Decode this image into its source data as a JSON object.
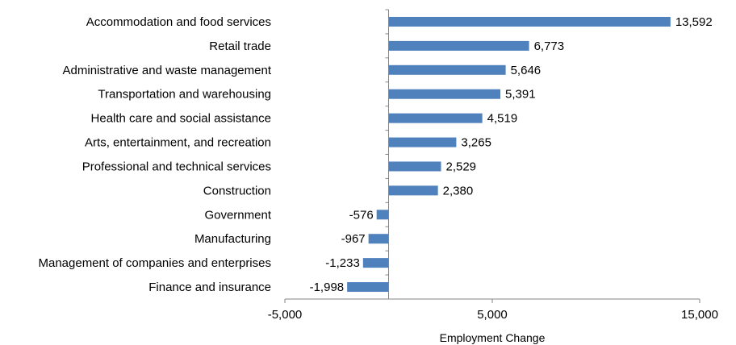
{
  "chart_data": {
    "type": "bar",
    "orientation": "horizontal",
    "categories": [
      "Accommodation and food services",
      "Retail trade",
      "Administrative and waste management",
      "Transportation and warehousing",
      "Health care and social assistance",
      "Arts, entertainment, and recreation",
      "Professional and technical services",
      "Construction",
      "Government",
      "Manufacturing",
      "Management of companies and enterprises",
      "Finance and insurance"
    ],
    "values": [
      13592,
      6773,
      5646,
      5391,
      4519,
      3265,
      2529,
      2380,
      -576,
      -967,
      -1233,
      -1998
    ],
    "value_labels": [
      "13,592",
      "6,773",
      "5,646",
      "5,391",
      "4,519",
      "3,265",
      "2,529",
      "2,380",
      "-576",
      "-967",
      "-1,233",
      "-1,998"
    ],
    "xlim": [
      -5000,
      15000
    ],
    "xticks": [
      -5000,
      5000,
      15000
    ],
    "xtick_labels": [
      "-5,000",
      "5,000",
      "15,000"
    ],
    "xlabel": "Employment Change",
    "ylabel": "",
    "title": "",
    "grid": false,
    "legend": "none",
    "bar_color": "#4F81BD",
    "axis_color": "#868686"
  }
}
